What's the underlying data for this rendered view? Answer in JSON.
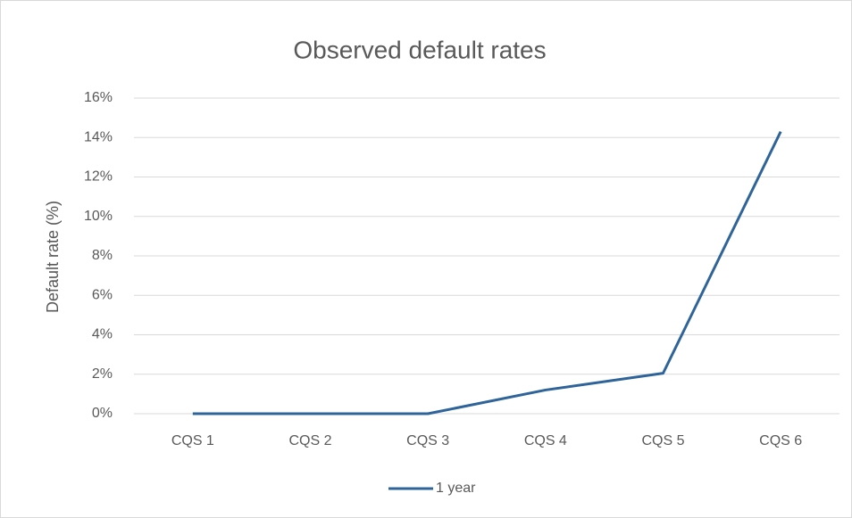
{
  "chart_data": {
    "type": "line",
    "title": "Observed default rates",
    "y_label": "Default rate (%)",
    "categories": [
      "CQS 1",
      "CQS 2",
      "CQS 3",
      "CQS 4",
      "CQS 5",
      "CQS 6"
    ],
    "series": [
      {
        "name": "1 year",
        "color": "#2e6499",
        "values": [
          0,
          0,
          0,
          1.2,
          2.05,
          14.3
        ]
      }
    ],
    "ylim": [
      0,
      16
    ],
    "yticks": [
      {
        "value": 0,
        "label": "0%"
      },
      {
        "value": 2,
        "label": "2%"
      },
      {
        "value": 4,
        "label": "4%"
      },
      {
        "value": 6,
        "label": "6%"
      },
      {
        "value": 8,
        "label": "8%"
      },
      {
        "value": 10,
        "label": "10%"
      },
      {
        "value": 12,
        "label": "12%"
      },
      {
        "value": 14,
        "label": "14%"
      },
      {
        "value": 16,
        "label": "16%"
      }
    ],
    "grid": true,
    "legend": "bottom"
  }
}
